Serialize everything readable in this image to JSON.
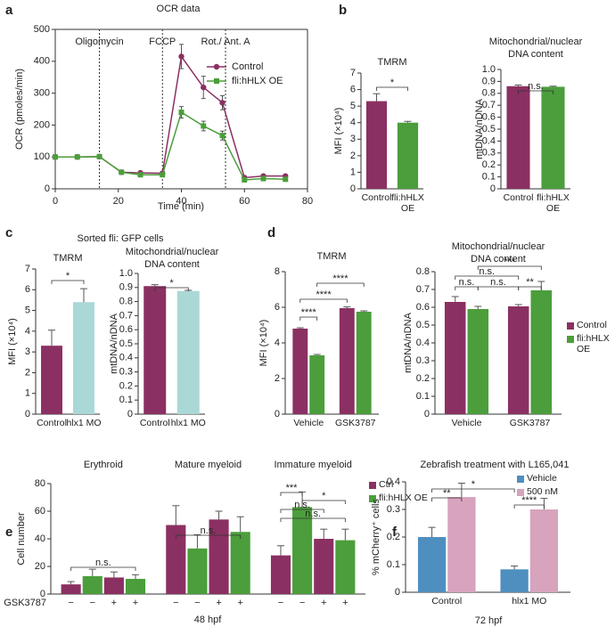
{
  "chart_data": [
    {
      "type": "line",
      "panel": "a",
      "title": [
        "OCR data"
      ],
      "xlabel": "Time (min)",
      "ylabel": "OCR (pmoles/min)",
      "x": [
        0,
        7,
        14,
        21,
        27,
        34,
        40,
        47,
        53,
        60,
        66,
        73
      ],
      "series": [
        {
          "name": "Control",
          "color": "#8b3062",
          "marker": "circle",
          "values": [
            100,
            100,
            101,
            52,
            50,
            49,
            415,
            318,
            270,
            35,
            40,
            40
          ],
          "errors": [
            6,
            4,
            6,
            5,
            5,
            5,
            38,
            35,
            22,
            5,
            4,
            4
          ]
        },
        {
          "name": "fli:hHLX OE",
          "color": "#4b9e3b",
          "marker": "square",
          "values": [
            100,
            100,
            101,
            52,
            44,
            44,
            240,
            197,
            167,
            28,
            32,
            30
          ],
          "errors": [
            4,
            4,
            4,
            5,
            4,
            4,
            18,
            15,
            14,
            5,
            4,
            3
          ]
        }
      ],
      "events": [
        {
          "label": "Oligomycin",
          "x": 14
        },
        {
          "label": "FCCP",
          "x": 34
        },
        {
          "label": "Rot./ Ant. A",
          "x": 54
        }
      ],
      "xlim": [
        0,
        80
      ],
      "xticks": [
        0,
        20,
        40,
        60,
        80
      ],
      "ylim": [
        0,
        500
      ],
      "yticks": [
        0,
        100,
        200,
        300,
        400,
        500
      ]
    },
    {
      "type": "bar",
      "panel": "b",
      "title": [
        "TMRM"
      ],
      "ylabel": "MFI (×10⁴)",
      "categories": [
        "Control",
        "fli:hHLX OE"
      ],
      "values": [
        5.3,
        4.0
      ],
      "errors": [
        0.45,
        0.08
      ],
      "colors": [
        "#8b3062",
        "#4b9e3b"
      ],
      "ylim": [
        0,
        7
      ],
      "yticks": [
        0,
        1,
        2,
        3,
        4,
        5,
        6,
        7
      ],
      "annotations": [
        "*"
      ]
    },
    {
      "type": "bar",
      "title": [
        "Mitochondrial/nuclear",
        "DNA content"
      ],
      "ylabel": "mtDNA/nDNA",
      "categories": [
        "Control",
        "fli:hHLX OE"
      ],
      "values": [
        0.86,
        0.855
      ],
      "errors": [
        0.01,
        0.005
      ],
      "colors": [
        "#8b3062",
        "#4b9e3b"
      ],
      "ylim": [
        0,
        1
      ],
      "yticks": [
        0,
        0.1,
        0.2,
        0.3,
        0.4,
        0.5,
        0.6,
        0.7,
        0.8,
        0.9,
        {
          "value": 1,
          "label": "1.0"
        }
      ],
      "annotations": [
        "n.s."
      ]
    },
    {
      "type": "bar",
      "panel": "c",
      "heading": "Sorted fli: GFP cells",
      "title": [
        "TMRM"
      ],
      "ylabel": "MFI (×10⁴)",
      "categories": [
        "Control",
        "hlx1 MO"
      ],
      "values": [
        3.3,
        5.4
      ],
      "errors": [
        0.75,
        0.65
      ],
      "colors": [
        "#8b3062",
        "#a9d8d6"
      ],
      "ylim": [
        0,
        7
      ],
      "yticks": [
        0,
        1,
        2,
        3,
        4,
        5,
        6,
        7
      ],
      "annotations": [
        "*"
      ]
    },
    {
      "type": "bar",
      "title": [
        "Mitochondrial/nuclear",
        "DNA content"
      ],
      "ylabel": "mtDNA/nDNA",
      "categories": [
        "Control",
        "hlx1 MO"
      ],
      "values": [
        0.91,
        0.875
      ],
      "errors": [
        0.01,
        0.005
      ],
      "colors": [
        "#8b3062",
        "#a9d8d6"
      ],
      "ylim": [
        0,
        1
      ],
      "yticks": [
        0,
        0.1,
        0.2,
        0.3,
        0.4,
        0.5,
        0.6,
        0.7,
        0.8,
        0.9,
        {
          "value": 1,
          "label": "1.0"
        }
      ],
      "annotations": [
        "*"
      ]
    },
    {
      "type": "bar",
      "panel": "d",
      "title": [
        "TMRM"
      ],
      "ylabel": "MFI (×10⁴)",
      "categories": [
        "Vehicle",
        "GSK3787"
      ],
      "series": [
        {
          "name": "Control",
          "color": "#8b3062",
          "values": [
            4.8,
            5.95
          ],
          "errors": [
            0.05,
            0.07
          ]
        },
        {
          "name": "fli:hHLX OE",
          "color": "#4b9e3b",
          "values": [
            3.3,
            5.75
          ],
          "errors": [
            0.05,
            0.05
          ]
        }
      ],
      "ylim": [
        0,
        8
      ],
      "yticks": [
        0,
        2,
        4,
        6,
        8
      ],
      "annotations": [
        "****",
        "****",
        "****"
      ]
    },
    {
      "type": "bar",
      "title": [
        "Mitochondrial/nuclear",
        "DNA content"
      ],
      "ylabel": "mtDNA/nDNA",
      "categories": [
        "Vehicle",
        "GSK3787"
      ],
      "series": [
        {
          "name": "Control",
          "color": "#8b3062",
          "values": [
            0.63,
            0.605
          ],
          "errors": [
            0.03,
            0.01
          ]
        },
        {
          "name": "fli:hHLX OE",
          "color": "#4b9e3b",
          "values": [
            0.59,
            0.695
          ],
          "errors": [
            0.015,
            0.05
          ]
        }
      ],
      "ylim": [
        0,
        0.8
      ],
      "yticks": [
        0,
        0.1,
        0.2,
        0.3,
        0.4,
        0.5,
        0.6,
        0.7,
        0.8
      ],
      "annotations": [
        "n.s.",
        "***",
        "n.s.",
        "n.s.",
        "**"
      ]
    },
    {
      "type": "bar",
      "panel": "e",
      "ylabel": "Cell number",
      "xlabel": "48 hpf",
      "groups": [
        "Erythroid",
        "Mature myeloid",
        "Immature myeloid"
      ],
      "x_row_label": "GSK3787",
      "categories": [
        "−",
        "+",
        "−",
        "+",
        "−",
        "+"
      ],
      "series": [
        {
          "name": "Ctrl",
          "color": "#8b3062",
          "values": [
            7,
            12,
            50,
            54,
            28,
            40
          ],
          "errors": [
            2,
            4,
            14,
            6,
            7,
            7
          ]
        },
        {
          "name": "fli:hHLX OE",
          "color": "#4b9e3b",
          "values": [
            13,
            11,
            33,
            45,
            63,
            39
          ],
          "errors": [
            5,
            3,
            10,
            11,
            11,
            8
          ]
        }
      ],
      "ylim": [
        0,
        80
      ],
      "yticks": [
        0,
        20,
        40,
        60,
        80
      ],
      "annotations": [
        "n.s.",
        "n.s.",
        "***",
        "*",
        "n.s.",
        "n.s."
      ]
    },
    {
      "type": "bar",
      "panel": "f",
      "title": [
        "Zebrafish treatment with L165,041"
      ],
      "ylabel": "% mCherry⁺ cells",
      "xlabel": "72 hpf",
      "categories": [
        "Control",
        "hlx1 MO"
      ],
      "series": [
        {
          "name": "Vehicle",
          "color": "#4f8fc0",
          "values": [
            0.2,
            0.083
          ],
          "errors": [
            0.035,
            0.012
          ]
        },
        {
          "name": "500 nM",
          "color": "#d7a3bd",
          "values": [
            0.345,
            0.3
          ],
          "errors": [
            0.05,
            0.04
          ]
        }
      ],
      "ylim": [
        0,
        0.4
      ],
      "yticks": [
        0,
        0.1,
        0.2,
        0.3,
        0.4
      ],
      "annotations": [
        "*",
        "**",
        "****"
      ]
    }
  ]
}
